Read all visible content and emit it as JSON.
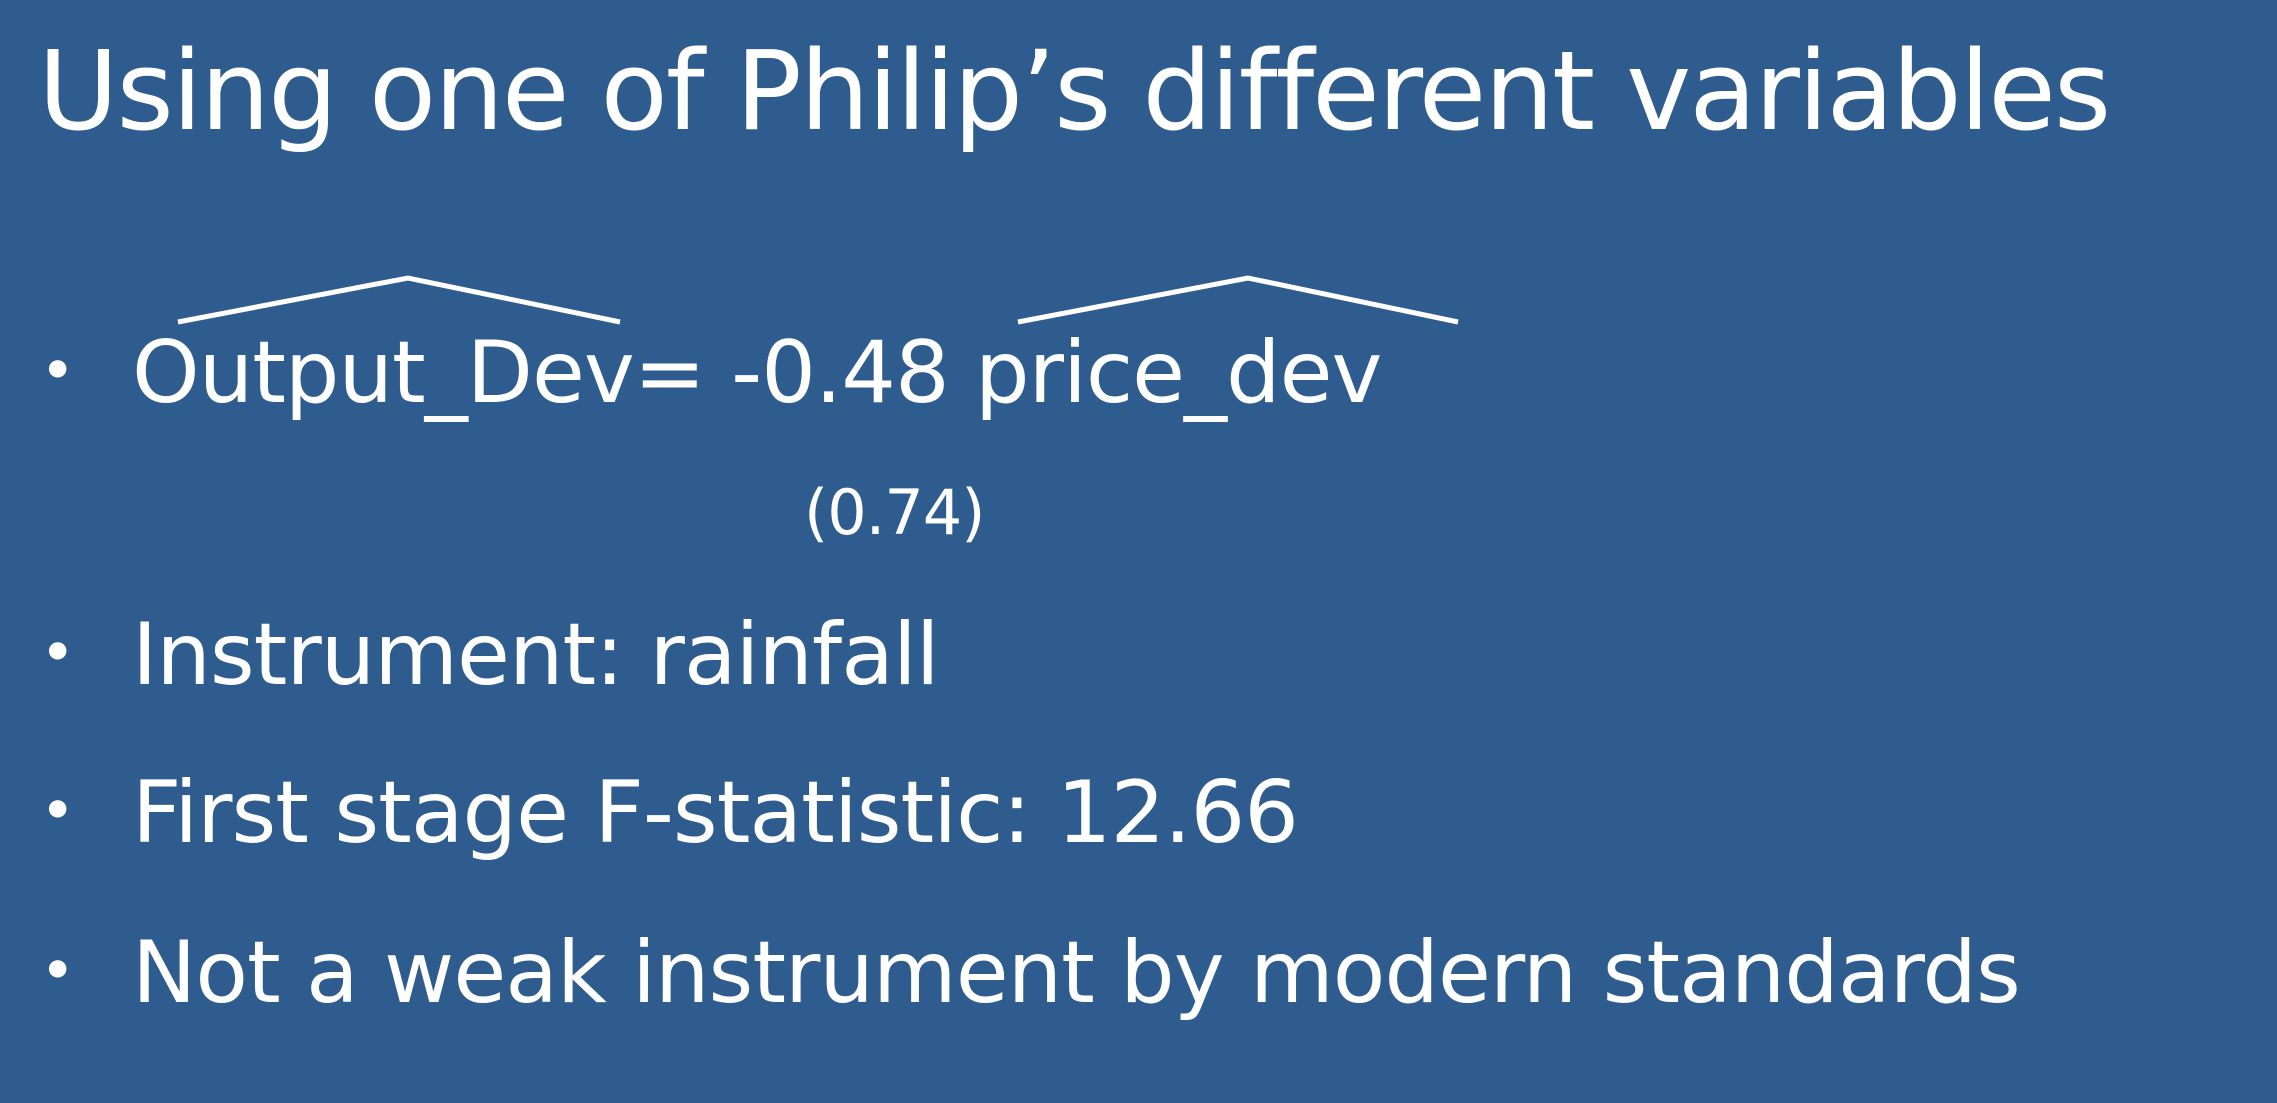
{
  "slide": {
    "title": "Using one of Philip’s different variables",
    "equation": {
      "bullet": "•",
      "lhs": "Output_Dev",
      "operator": "= -0.48 ",
      "rhs": "price_dev",
      "standard_error": "(0.74)"
    },
    "bullets": [
      {
        "bullet": "•",
        "text": "Instrument: rainfall"
      },
      {
        "bullet": "•",
        "text": "First stage F-statistic: 12.66"
      },
      {
        "bullet": "•",
        "text": "Not a weak instrument by modern standards"
      }
    ]
  }
}
